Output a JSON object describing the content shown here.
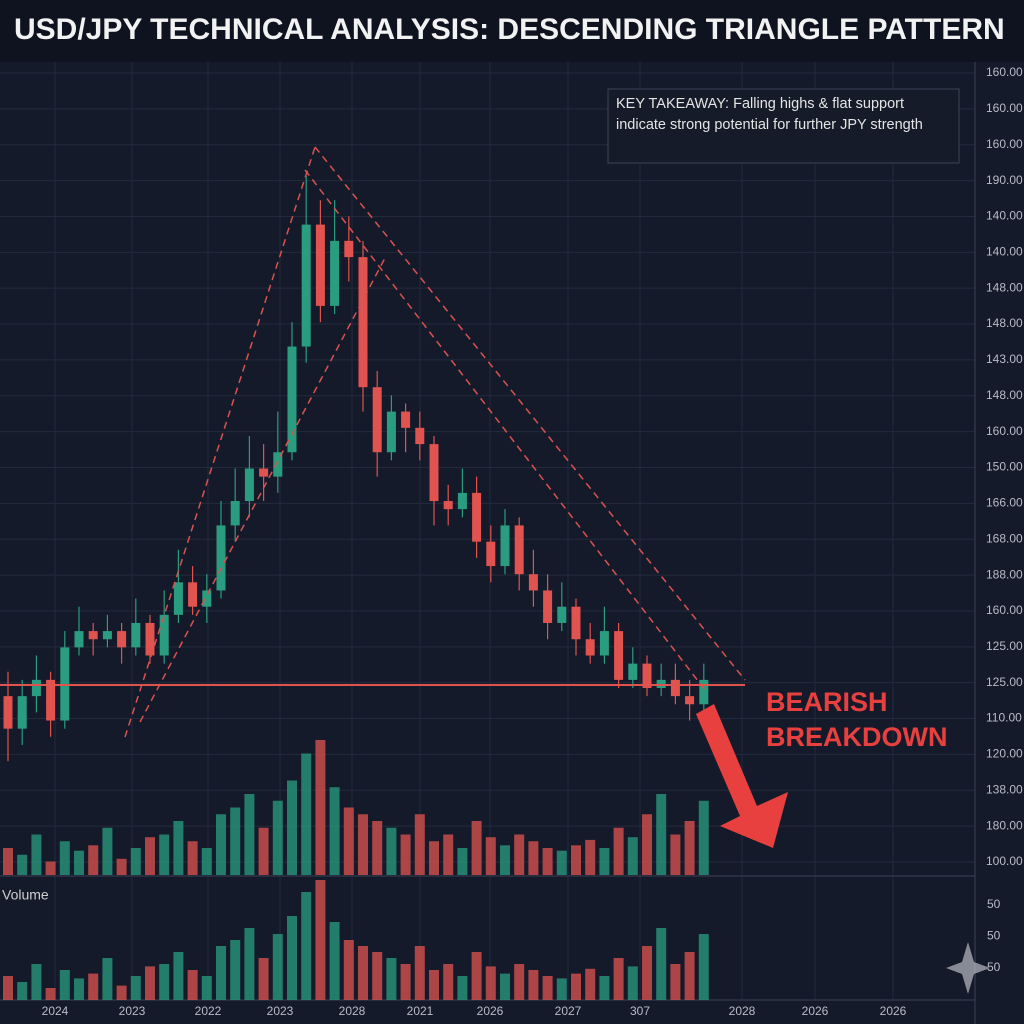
{
  "chart_data": {
    "type": "candlestick",
    "title": "USD/JPY TECHNICAL ANALYSIS: DESCENDING TRIANGLE PATTERN",
    "annotation": "KEY TAKEAWAY: Falling highs & flat support indicate strong potential for further JPY strength",
    "callout": [
      "BEARISH",
      "BREAKDOWN"
    ],
    "volume_label": "Volume",
    "y_axis_labels": [
      "160.00",
      "160.00",
      "160.00",
      "190.00",
      "140.00",
      "140.00",
      "148.00",
      "148.00",
      "143.00",
      "148.00",
      "160.00",
      "150.00",
      "166.00",
      "168.00",
      "188.00",
      "160.00",
      "125.00",
      "125.00",
      "110.00",
      "120.00",
      "138.00",
      "180.00",
      "100.00"
    ],
    "volume_axis_labels": [
      "50",
      "50",
      "50"
    ],
    "x_labels": [
      "2024",
      "2023",
      "2022",
      "2023",
      "2028",
      "2021",
      "2026",
      "2027",
      "307",
      "2028",
      "2026",
      "2026"
    ],
    "ylim": [
      100,
      200
    ],
    "volume_ylim": [
      0,
      100
    ],
    "up_color": "#2a9d80",
    "down_color": "#e0534f",
    "open": [
      122,
      118,
      122,
      124,
      119,
      128,
      130,
      129,
      130,
      128,
      131,
      127,
      132,
      136,
      133,
      135,
      143,
      146,
      150,
      149,
      152,
      165,
      180,
      170,
      178,
      176,
      160,
      152,
      157,
      155,
      153,
      146,
      145,
      147,
      141,
      138,
      143,
      137,
      135,
      131,
      133,
      129,
      127,
      130,
      124,
      126,
      123,
      124,
      122,
      121
    ],
    "high": [
      125,
      124,
      127,
      125,
      130,
      133,
      131,
      132,
      131,
      134,
      132,
      135,
      140,
      138,
      137,
      146,
      150,
      154,
      153,
      157,
      168,
      186,
      183,
      183,
      181,
      178,
      162,
      159,
      158,
      157,
      154,
      148,
      150,
      149,
      143,
      145,
      144,
      140,
      137,
      136,
      134,
      131,
      133,
      131,
      128,
      127,
      126,
      126,
      124,
      126
    ],
    "low": [
      114,
      116,
      120,
      117,
      118,
      127,
      127,
      128,
      126,
      127,
      126,
      126,
      131,
      132,
      131,
      134,
      141,
      144,
      146,
      147,
      151,
      163,
      168,
      169,
      173,
      157,
      149,
      151,
      152,
      151,
      143,
      143,
      144,
      139,
      136,
      137,
      135,
      133,
      129,
      130,
      127,
      126,
      126,
      123,
      123,
      122,
      122,
      121,
      119,
      120
    ],
    "close": [
      118,
      122,
      124,
      119,
      128,
      130,
      129,
      130,
      128,
      131,
      127,
      132,
      136,
      133,
      135,
      143,
      146,
      150,
      149,
      152,
      165,
      180,
      170,
      178,
      176,
      160,
      152,
      157,
      155,
      153,
      146,
      145,
      147,
      141,
      138,
      143,
      137,
      135,
      131,
      133,
      129,
      127,
      130,
      124,
      126,
      123,
      124,
      122,
      121,
      124
    ],
    "volume": [
      20,
      15,
      30,
      10,
      25,
      18,
      22,
      35,
      12,
      20,
      28,
      30,
      40,
      25,
      20,
      45,
      50,
      60,
      35,
      55,
      70,
      90,
      100,
      65,
      50,
      45,
      40,
      35,
      30,
      45,
      25,
      30,
      20,
      40,
      28,
      22,
      30,
      25,
      20,
      18,
      22,
      26,
      20,
      35,
      28,
      45,
      60,
      30,
      40,
      55
    ]
  }
}
